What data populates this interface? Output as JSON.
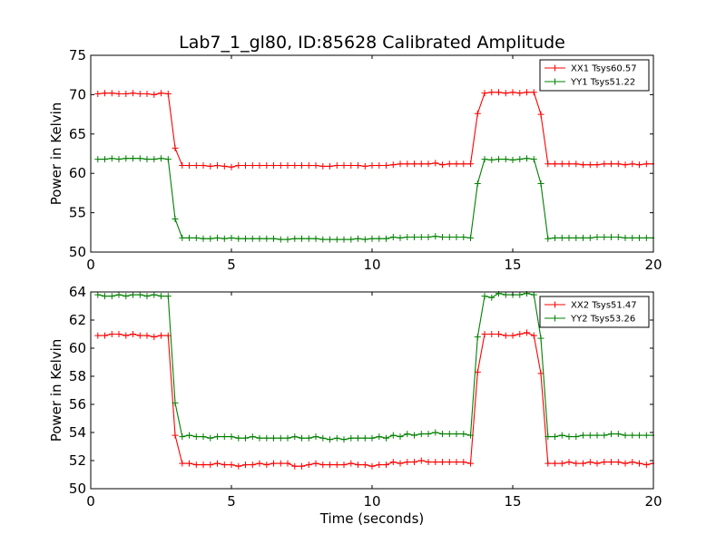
{
  "chart_data": [
    {
      "type": "line",
      "title": "Lab7_1_gl80, ID:85628 Calibrated Amplitude",
      "xlabel": "",
      "ylabel": "Power in Kelvin",
      "xlim": [
        0,
        20
      ],
      "ylim": [
        50,
        75
      ],
      "xticks": [
        0,
        5,
        10,
        15,
        20
      ],
      "yticks": [
        50,
        55,
        60,
        65,
        70,
        75
      ],
      "legend_position": "top-right",
      "series": [
        {
          "name": "XX1 Tsys60.57",
          "color": "#ff0000",
          "x": [
            0.25,
            0.5,
            0.75,
            1,
            1.25,
            1.5,
            1.75,
            2,
            2.25,
            2.5,
            2.75,
            3,
            3.25,
            3.5,
            3.75,
            4,
            4.25,
            4.5,
            4.75,
            5,
            5.25,
            5.5,
            5.75,
            6,
            6.25,
            6.5,
            6.75,
            7,
            7.25,
            7.5,
            7.75,
            8,
            8.25,
            8.5,
            8.75,
            9,
            9.25,
            9.5,
            9.75,
            10,
            10.25,
            10.5,
            10.75,
            11,
            11.25,
            11.5,
            11.75,
            12,
            12.25,
            12.5,
            12.75,
            13,
            13.25,
            13.5,
            13.75,
            14,
            14.25,
            14.5,
            14.75,
            15,
            15.25,
            15.5,
            15.75,
            16,
            16.25,
            16.5,
            16.75,
            17,
            17.25,
            17.5,
            17.75,
            18,
            18.25,
            18.5,
            18.75,
            19,
            19.25,
            19.5,
            19.75,
            20
          ],
          "y": [
            70.1,
            70.2,
            70.2,
            70.1,
            70.1,
            70.2,
            70.1,
            70.1,
            70,
            70.2,
            70.1,
            63.2,
            61,
            61,
            61,
            61,
            60.9,
            61,
            60.9,
            60.8,
            61,
            61,
            61,
            61,
            61,
            61,
            61,
            61,
            61,
            61,
            61,
            61,
            60.9,
            60.9,
            61,
            61,
            61,
            61,
            60.9,
            61,
            61,
            61,
            61.1,
            61.2,
            61.2,
            61.2,
            61.2,
            61.2,
            61.3,
            61.1,
            61.2,
            61.2,
            61.2,
            61.2,
            67.6,
            70.2,
            70.3,
            70.3,
            70.2,
            70.3,
            70.2,
            70.3,
            70.3,
            67.5,
            61.2,
            61.2,
            61.2,
            61.2,
            61.2,
            61.1,
            61.1,
            61.1,
            61.2,
            61.2,
            61.2,
            61.1,
            61.2,
            61.1,
            61.2,
            61.2
          ]
        },
        {
          "name": "YY1 Tsys51.22",
          "color": "#008000",
          "x": [
            0.25,
            0.5,
            0.75,
            1,
            1.25,
            1.5,
            1.75,
            2,
            2.25,
            2.5,
            2.75,
            3,
            3.25,
            3.5,
            3.75,
            4,
            4.25,
            4.5,
            4.75,
            5,
            5.25,
            5.5,
            5.75,
            6,
            6.25,
            6.5,
            6.75,
            7,
            7.25,
            7.5,
            7.75,
            8,
            8.25,
            8.5,
            8.75,
            9,
            9.25,
            9.5,
            9.75,
            10,
            10.25,
            10.5,
            10.75,
            11,
            11.25,
            11.5,
            11.75,
            12,
            12.25,
            12.5,
            12.75,
            13,
            13.25,
            13.5,
            13.75,
            14,
            14.25,
            14.5,
            14.75,
            15,
            15.25,
            15.5,
            15.75,
            16,
            16.25,
            16.5,
            16.75,
            17,
            17.25,
            17.5,
            17.75,
            18,
            18.25,
            18.5,
            18.75,
            19,
            19.25,
            19.5,
            19.75,
            20
          ],
          "y": [
            61.8,
            61.8,
            61.9,
            61.8,
            61.9,
            61.9,
            61.9,
            61.8,
            61.8,
            61.9,
            61.8,
            54.2,
            51.8,
            51.8,
            51.8,
            51.7,
            51.7,
            51.8,
            51.7,
            51.8,
            51.7,
            51.7,
            51.7,
            51.7,
            51.7,
            51.7,
            51.6,
            51.6,
            51.7,
            51.7,
            51.7,
            51.7,
            51.6,
            51.6,
            51.6,
            51.6,
            51.6,
            51.7,
            51.6,
            51.7,
            51.7,
            51.7,
            51.9,
            51.8,
            51.9,
            51.9,
            51.9,
            51.9,
            52,
            51.9,
            51.9,
            51.9,
            51.9,
            51.8,
            58.7,
            61.8,
            61.7,
            61.8,
            61.8,
            61.7,
            61.8,
            61.9,
            61.8,
            58.7,
            51.7,
            51.8,
            51.8,
            51.8,
            51.8,
            51.8,
            51.8,
            51.9,
            51.9,
            51.9,
            51.9,
            51.8,
            51.8,
            51.8,
            51.8,
            51.8
          ]
        }
      ]
    },
    {
      "type": "line",
      "title": "",
      "xlabel": "Time (seconds)",
      "ylabel": "Power in Kelvin",
      "xlim": [
        0,
        20
      ],
      "ylim": [
        50,
        64
      ],
      "xticks": [
        0,
        5,
        10,
        15,
        20
      ],
      "yticks": [
        50,
        52,
        54,
        56,
        58,
        60,
        62,
        64
      ],
      "legend_position": "top-right",
      "series": [
        {
          "name": "XX2 Tsys51.47",
          "color": "#ff0000",
          "x": [
            0.25,
            0.5,
            0.75,
            1,
            1.25,
            1.5,
            1.75,
            2,
            2.25,
            2.5,
            2.75,
            3,
            3.25,
            3.5,
            3.75,
            4,
            4.25,
            4.5,
            4.75,
            5,
            5.25,
            5.5,
            5.75,
            6,
            6.25,
            6.5,
            6.75,
            7,
            7.25,
            7.5,
            7.75,
            8,
            8.25,
            8.5,
            8.75,
            9,
            9.25,
            9.5,
            9.75,
            10,
            10.25,
            10.5,
            10.75,
            11,
            11.25,
            11.5,
            11.75,
            12,
            12.25,
            12.5,
            12.75,
            13,
            13.25,
            13.5,
            13.75,
            14,
            14.25,
            14.5,
            14.75,
            15,
            15.25,
            15.5,
            15.75,
            16,
            16.25,
            16.5,
            16.75,
            17,
            17.25,
            17.5,
            17.75,
            18,
            18.25,
            18.5,
            18.75,
            19,
            19.25,
            19.5,
            19.75,
            20
          ],
          "y": [
            60.9,
            60.9,
            61,
            61,
            60.9,
            61,
            60.9,
            60.9,
            60.8,
            60.9,
            60.9,
            53.8,
            51.8,
            51.8,
            51.7,
            51.7,
            51.7,
            51.8,
            51.7,
            51.7,
            51.6,
            51.7,
            51.7,
            51.8,
            51.7,
            51.8,
            51.8,
            51.8,
            51.6,
            51.6,
            51.7,
            51.8,
            51.7,
            51.7,
            51.7,
            51.7,
            51.8,
            51.7,
            51.7,
            51.6,
            51.7,
            51.7,
            51.9,
            51.8,
            51.9,
            51.9,
            52,
            51.9,
            51.9,
            51.9,
            51.9,
            51.9,
            51.9,
            51.8,
            58.3,
            61,
            61,
            61,
            60.9,
            60.9,
            61,
            61.1,
            60.9,
            58.2,
            51.8,
            51.8,
            51.8,
            51.9,
            51.8,
            51.8,
            51.9,
            51.8,
            51.9,
            51.9,
            51.9,
            51.8,
            51.9,
            51.8,
            51.7,
            51.8
          ]
        },
        {
          "name": "YY2 Tsys53.26",
          "color": "#008000",
          "x": [
            0.25,
            0.5,
            0.75,
            1,
            1.25,
            1.5,
            1.75,
            2,
            2.25,
            2.5,
            2.75,
            3,
            3.25,
            3.5,
            3.75,
            4,
            4.25,
            4.5,
            4.75,
            5,
            5.25,
            5.5,
            5.75,
            6,
            6.25,
            6.5,
            6.75,
            7,
            7.25,
            7.5,
            7.75,
            8,
            8.25,
            8.5,
            8.75,
            9,
            9.25,
            9.5,
            9.75,
            10,
            10.25,
            10.5,
            10.75,
            11,
            11.25,
            11.5,
            11.75,
            12,
            12.25,
            12.5,
            12.75,
            13,
            13.25,
            13.5,
            13.75,
            14,
            14.25,
            14.5,
            14.75,
            15,
            15.25,
            15.5,
            15.75,
            16,
            16.25,
            16.5,
            16.75,
            17,
            17.25,
            17.5,
            17.75,
            18,
            18.25,
            18.5,
            18.75,
            19,
            19.25,
            19.5,
            19.75,
            20
          ],
          "y": [
            63.8,
            63.7,
            63.7,
            63.8,
            63.7,
            63.8,
            63.8,
            63.7,
            63.8,
            63.7,
            63.7,
            56.1,
            53.7,
            53.8,
            53.7,
            53.7,
            53.6,
            53.7,
            53.7,
            53.7,
            53.6,
            53.6,
            53.7,
            53.6,
            53.6,
            53.6,
            53.6,
            53.6,
            53.7,
            53.6,
            53.6,
            53.7,
            53.6,
            53.5,
            53.6,
            53.5,
            53.6,
            53.6,
            53.6,
            53.6,
            53.7,
            53.6,
            53.8,
            53.7,
            53.9,
            53.8,
            53.9,
            53.9,
            54,
            53.9,
            53.9,
            53.9,
            53.9,
            53.8,
            60.8,
            63.7,
            63.6,
            63.9,
            63.8,
            63.8,
            63.8,
            63.9,
            63.8,
            60.7,
            53.7,
            53.7,
            53.8,
            53.7,
            53.7,
            53.8,
            53.8,
            53.8,
            53.8,
            53.9,
            53.9,
            53.8,
            53.8,
            53.8,
            53.8,
            53.8
          ]
        }
      ]
    }
  ]
}
